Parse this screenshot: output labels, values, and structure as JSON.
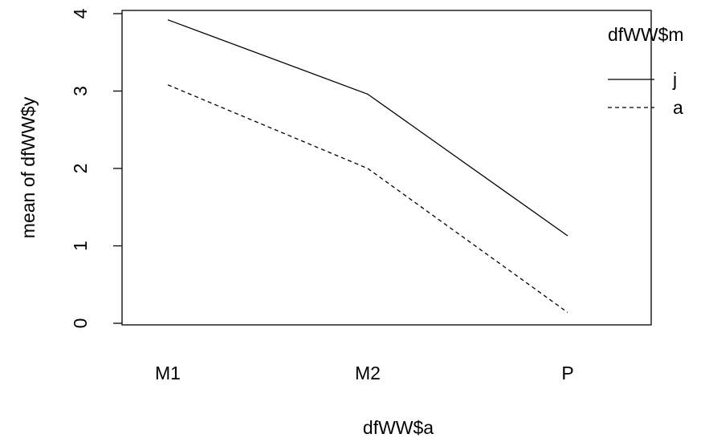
{
  "chart_data": {
    "type": "line",
    "title": "",
    "xlabel": "dfWW$a",
    "ylabel": "mean of  dfWW$y",
    "categories": [
      "M1",
      "M2",
      "P"
    ],
    "ylim": [
      0,
      4
    ],
    "yticks": [
      "0",
      "1",
      "2",
      "3",
      "4"
    ],
    "grid": false,
    "legend": {
      "title": "dfWW$m",
      "placement": "top-right"
    },
    "series": [
      {
        "name": "j",
        "values": [
          3.92,
          2.96,
          1.13
        ],
        "line_style": "solid",
        "color": "#000000"
      },
      {
        "name": "a",
        "values": [
          3.08,
          2.0,
          0.14
        ],
        "line_style": "dashed",
        "color": "#000000"
      }
    ]
  }
}
